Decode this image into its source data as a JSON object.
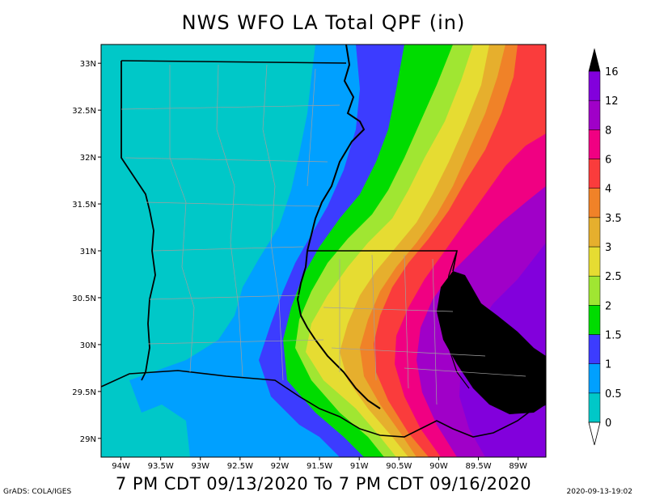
{
  "title": "NWS WFO LA Total QPF (in)",
  "subtitle": "7 PM CDT 09/13/2020 To 7 PM CDT 09/16/2020",
  "credit": "GrADS: COLA/IGES",
  "timestamp": "2020-09-13-19:02",
  "map": {
    "lon_range": [
      -94.25,
      -88.65
    ],
    "lat_range": [
      28.8,
      33.2
    ],
    "lat_ticks": [
      "33N",
      "32.5N",
      "32N",
      "31.5N",
      "31N",
      "30.5N",
      "30N",
      "29.5N",
      "29N"
    ],
    "lon_ticks": [
      "94W",
      "93.5W",
      "93W",
      "92.5W",
      "92W",
      "91.5W",
      "91W",
      "90.5W",
      "90W",
      "89.5W",
      "89W"
    ],
    "lat_values": [
      33,
      32.5,
      32,
      31.5,
      31,
      30.5,
      30,
      29.5,
      29
    ],
    "lon_values": [
      -94,
      -93.5,
      -93,
      -92.5,
      -92,
      -91.5,
      -91,
      -90.5,
      -90,
      -89.5,
      -89
    ]
  },
  "legend": {
    "levels": [
      "0",
      "0.5",
      "1",
      "1.5",
      "2",
      "2.5",
      "3",
      "3.5",
      "4",
      "6",
      "8",
      "12",
      "16"
    ],
    "colors": [
      "#00c8c8",
      "#00a0ff",
      "#3c3cff",
      "#00dc00",
      "#a0e632",
      "#e6dc32",
      "#e6af2d",
      "#f08228",
      "#fa3c3c",
      "#f00082",
      "#a000c8",
      "#8200dc",
      "#000000"
    ]
  }
}
